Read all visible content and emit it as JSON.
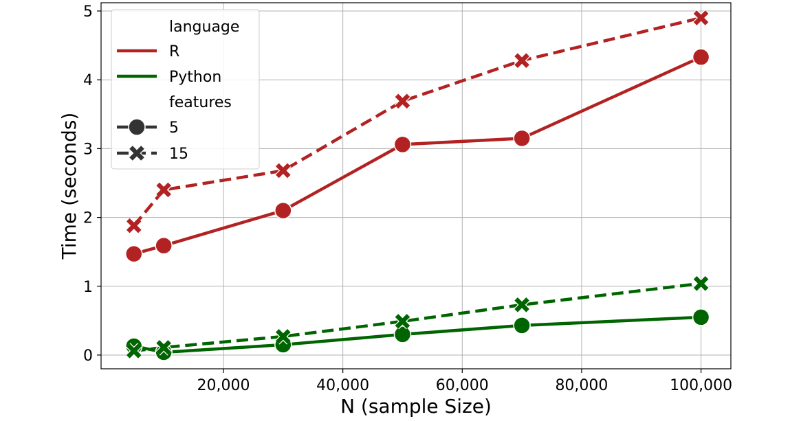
{
  "chart_data": {
    "type": "line",
    "xlabel": "N (sample Size)",
    "ylabel": "Time (seconds)",
    "x": [
      5000,
      10000,
      30000,
      50000,
      70000,
      100000
    ],
    "xticks": [
      20000,
      40000,
      60000,
      80000,
      100000
    ],
    "xtick_labels": [
      "20,000",
      "40,000",
      "60,000",
      "80,000",
      "100,000"
    ],
    "yticks": [
      0,
      1,
      2,
      3,
      4,
      5
    ],
    "ytick_labels": [
      "0",
      "1",
      "2",
      "3",
      "4",
      "5"
    ],
    "xlim": [
      -500,
      105000
    ],
    "ylim": [
      -0.2,
      5.12
    ],
    "grid": true,
    "legend_position": "top-left",
    "legend": {
      "hue_title": "language",
      "style_title": "features",
      "languages": [
        {
          "label": "R",
          "color": "#b22222"
        },
        {
          "label": "Python",
          "color": "#006400"
        }
      ],
      "features": [
        {
          "label": "5",
          "marker": "circle",
          "dash": "solid"
        },
        {
          "label": "15",
          "marker": "x",
          "dash": "dashed"
        }
      ]
    },
    "series": [
      {
        "language": "R",
        "features": "5",
        "color": "#b22222",
        "marker": "circle",
        "dash": "solid",
        "values": [
          1.47,
          1.59,
          2.1,
          3.06,
          3.15,
          4.33
        ]
      },
      {
        "language": "R",
        "features": "15",
        "color": "#b22222",
        "marker": "x",
        "dash": "dashed",
        "values": [
          1.88,
          2.4,
          2.68,
          3.69,
          4.28,
          4.9
        ]
      },
      {
        "language": "Python",
        "features": "5",
        "color": "#006400",
        "marker": "circle",
        "dash": "solid",
        "values": [
          0.13,
          0.04,
          0.15,
          0.3,
          0.43,
          0.55
        ]
      },
      {
        "language": "Python",
        "features": "15",
        "color": "#006400",
        "marker": "x",
        "dash": "dashed",
        "values": [
          0.06,
          0.11,
          0.27,
          0.49,
          0.73,
          1.04
        ]
      }
    ]
  }
}
